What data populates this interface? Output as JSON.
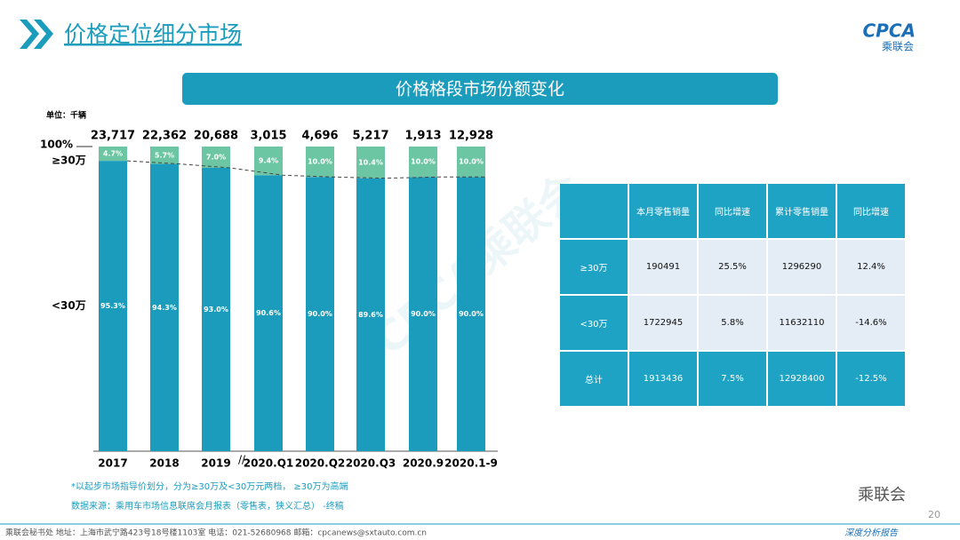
{
  "header": {
    "title": "价格定位细分市场",
    "logo": "CPCA",
    "logo_sub": "乘联会"
  },
  "chart_data": {
    "type": "stacked_bar",
    "title": "价格格段市场份额变化",
    "unit": "单位：千辆",
    "categories": [
      "2017",
      "2018",
      "2019",
      "2020.Q1",
      "2020.Q2",
      "2020.Q3",
      "2020.9",
      "2020.1-9"
    ],
    "totals": [
      {
        "value": 23717,
        "label": "23,717"
      },
      {
        "value": 22362,
        "label": "22,362"
      },
      {
        "value": 20688,
        "label": "20,688"
      },
      {
        "value": 3015,
        "label": "3,015"
      },
      {
        "value": 4696,
        "label": "4,696"
      },
      {
        "value": 5217,
        "label": "5,217"
      },
      {
        "value": 1913,
        "label": "1,913"
      },
      {
        "value": 12928,
        "label": "12,928"
      }
    ],
    "series": [
      {
        "name": "<30万",
        "color": "#1b9cbd",
        "values": [
          95.3,
          94.3,
          93.0,
          90.6,
          90.0,
          89.6,
          90.0,
          90.0
        ],
        "value_labels": [
          "95.3%",
          "94.3%",
          "93.0%",
          "90.6%",
          "90.0%",
          "89.6%",
          "90.0%",
          "90.0%"
        ]
      },
      {
        "name": "≥30万",
        "color": "#6cc6a4",
        "values": [
          4.7,
          5.7,
          7.0,
          9.4,
          10.0,
          10.4,
          10.0,
          10.0
        ],
        "value_labels": [
          "4.7%",
          "5.7%",
          "7.0%",
          "9.4%",
          "10.0%",
          "10.4%",
          "10.0%",
          "10.0%"
        ]
      }
    ],
    "ylim": [
      0,
      100
    ],
    "yticks": [
      {
        "value": 100,
        "label": "100%"
      }
    ],
    "notes": [
      "*以起步市场指导价划分，分为≥30万及<30万元两档，  ≥30万为高端",
      "数据来源：乘用车市场信息联席会月报表（零售表，狭义汇总）  -终稿"
    ]
  },
  "table": {
    "columns": [
      "本月零售销量",
      "同比增速",
      "累计零售销量",
      "同比增速"
    ],
    "rows": [
      [
        "≥30万",
        "190491",
        "25.5%",
        "1296290",
        "12.4%"
      ],
      [
        "<30万",
        "1722945",
        "5.8%",
        "11632110",
        "-14.6%"
      ],
      [
        "总计",
        "1913436",
        "7.5%",
        "12928400",
        "-12.5%"
      ]
    ]
  },
  "footer": {
    "contact": "乘联会秘书处   地址：上海市武宁路423号18号楼1103室    电话：021-52680968    邮箱：cpcanews@sxtauto.com.cn",
    "report": "深度分析报告",
    "page": "20",
    "wechat": "乘联会"
  }
}
